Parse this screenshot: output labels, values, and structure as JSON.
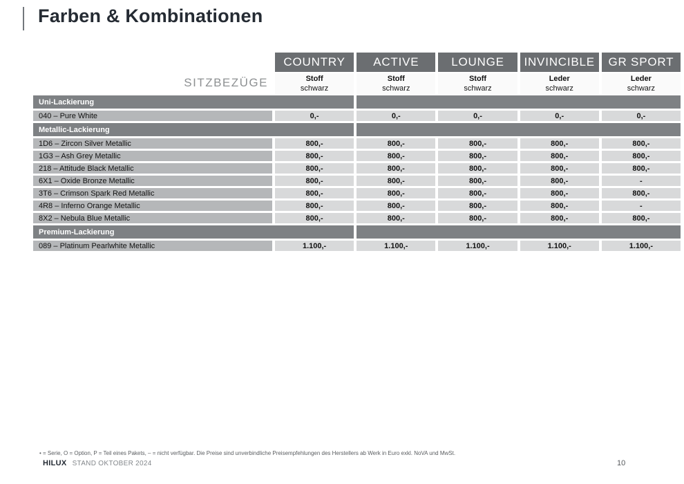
{
  "page": {
    "title": "Farben & Kombinationen",
    "footnote": "• = Serie, O = Option, P = Teil eines Pakets, – = nicht verfügbar. Die Preise sind unverbindliche Preisempfehlungen des Herstellers ab Werk in Euro exkl. NoVA und MwSt.",
    "footer_model": "HILUX",
    "footer_status": "STAND OKTOBER 2024",
    "page_number": "10"
  },
  "table": {
    "seat_label": "SITZBEZÜGE",
    "columns": [
      {
        "name": "COUNTRY",
        "material": "Stoff",
        "color": "schwarz"
      },
      {
        "name": "ACTIVE",
        "material": "Stoff",
        "color": "schwarz"
      },
      {
        "name": "LOUNGE",
        "material": "Stoff",
        "color": "schwarz"
      },
      {
        "name": "INVINCIBLE",
        "material": "Leder",
        "color": "schwarz"
      },
      {
        "name": "GR SPORT",
        "material": "Leder",
        "color": "schwarz"
      }
    ],
    "sections": [
      {
        "header": "Uni-Lackierung",
        "rows": [
          {
            "label": "040 – Pure White",
            "values": [
              "0,-",
              "0,-",
              "0,-",
              "0,-",
              "0,-"
            ]
          }
        ]
      },
      {
        "header": "Metallic-Lackierung",
        "rows": [
          {
            "label": "1D6 – Zircon Silver Metallic",
            "values": [
              "800,-",
              "800,-",
              "800,-",
              "800,-",
              "800,-"
            ]
          },
          {
            "label": "1G3 – Ash Grey Metallic",
            "values": [
              "800,-",
              "800,-",
              "800,-",
              "800,-",
              "800,-"
            ]
          },
          {
            "label": "218 – Attitude Black Metallic",
            "values": [
              "800,-",
              "800,-",
              "800,-",
              "800,-",
              "800,-"
            ]
          },
          {
            "label": "6X1 – Oxide Bronze Metallic",
            "values": [
              "800,-",
              "800,-",
              "800,-",
              "800,-",
              "-"
            ]
          },
          {
            "label": "3T6 – Crimson Spark Red Metallic",
            "values": [
              "800,-",
              "800,-",
              "800,-",
              "800,-",
              "800,-"
            ]
          },
          {
            "label": "4R8 – Inferno Orange Metallic",
            "values": [
              "800,-",
              "800,-",
              "800,-",
              "800,-",
              "-"
            ]
          },
          {
            "label": "8X2 – Nebula Blue Metallic",
            "values": [
              "800,-",
              "800,-",
              "800,-",
              "800,-",
              "800,-"
            ]
          }
        ]
      },
      {
        "header": "Premium-Lackierung",
        "rows": [
          {
            "label": "089 – Platinum Pearlwhite Metallic",
            "values": [
              "1.100,-",
              "1.100,-",
              "1.100,-",
              "1.100,-",
              "1.100,-"
            ]
          }
        ]
      }
    ]
  },
  "colors": {
    "column_header_bg": "#6b6e71",
    "section_header_bg": "#7e8184",
    "row_label_bg": "#b5b7b9",
    "row_value_bg": "#d8d9da",
    "title_text": "#252b33",
    "header_text": "#ffffff"
  }
}
